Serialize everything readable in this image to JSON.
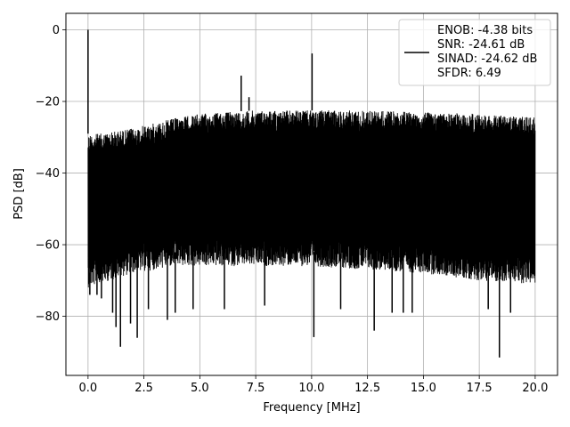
{
  "chart_data": {
    "type": "line",
    "title": "",
    "xlabel": "Frequency [MHz]",
    "ylabel": "PSD [dB]",
    "xlim": [
      -0.99,
      21.0
    ],
    "ylim": [
      -96.5,
      4.6
    ],
    "xticks": [
      0.0,
      2.5,
      5.0,
      7.5,
      10.0,
      12.5,
      15.0,
      17.5,
      20.0
    ],
    "xtick_labels": [
      "0.0",
      "2.5",
      "5.0",
      "7.5",
      "10.0",
      "12.5",
      "15.0",
      "17.5",
      "20.0"
    ],
    "yticks": [
      0,
      -20,
      -40,
      -60,
      -80
    ],
    "ytick_labels": [
      "0",
      "−20",
      "−40",
      "−60",
      "−80"
    ],
    "grid": true,
    "legend_position": "upper right",
    "line_color": "#000000",
    "series": [
      {
        "name": "ENOB: -4.38 bits\nSNR: -24.61 dB\nSINAD: -24.62 dB\nSFDR: 6.49",
        "legend_lines": [
          "ENOB: -4.38 bits",
          "SNR: -24.61 dB",
          "SINAD: -24.62 dB",
          "SFDR: 6.49"
        ],
        "color": "#000000",
        "envelope_x": [
          0.0,
          0.5,
          1.0,
          2.0,
          3.0,
          4.0,
          5.0,
          6.0,
          7.5,
          10.0,
          12.5,
          15.0,
          17.5,
          20.0
        ],
        "envelope_upper": [
          -29,
          -29,
          -28.5,
          -27.5,
          -26,
          -24.5,
          -23.5,
          -23,
          -22.5,
          -22.5,
          -22.5,
          -23,
          -23.5,
          -24.5
        ],
        "envelope_lower": [
          -68,
          -67,
          -66,
          -64,
          -63,
          -62,
          -62,
          -62,
          -62,
          -62,
          -63,
          -64,
          -66,
          -67
        ],
        "peaks": [
          {
            "x": 0.0,
            "y": 0.0
          },
          {
            "x": 6.85,
            "y": -12.8
          },
          {
            "x": 7.2,
            "y": -18.8
          },
          {
            "x": 10.02,
            "y": -6.6
          }
        ],
        "dips": [
          {
            "x": 0.08,
            "y": -74
          },
          {
            "x": 0.4,
            "y": -74
          },
          {
            "x": 0.6,
            "y": -75
          },
          {
            "x": 1.1,
            "y": -79
          },
          {
            "x": 1.25,
            "y": -83
          },
          {
            "x": 1.45,
            "y": -88.5
          },
          {
            "x": 1.9,
            "y": -82
          },
          {
            "x": 2.2,
            "y": -86
          },
          {
            "x": 2.7,
            "y": -78
          },
          {
            "x": 3.55,
            "y": -81
          },
          {
            "x": 3.9,
            "y": -79
          },
          {
            "x": 4.7,
            "y": -78
          },
          {
            "x": 6.1,
            "y": -78
          },
          {
            "x": 7.9,
            "y": -77
          },
          {
            "x": 10.1,
            "y": -85.8
          },
          {
            "x": 11.3,
            "y": -78
          },
          {
            "x": 12.8,
            "y": -84
          },
          {
            "x": 13.6,
            "y": -79
          },
          {
            "x": 14.1,
            "y": -79
          },
          {
            "x": 14.5,
            "y": -79
          },
          {
            "x": 17.9,
            "y": -78
          },
          {
            "x": 18.4,
            "y": -91.5
          },
          {
            "x": 18.9,
            "y": -79
          }
        ]
      }
    ]
  }
}
